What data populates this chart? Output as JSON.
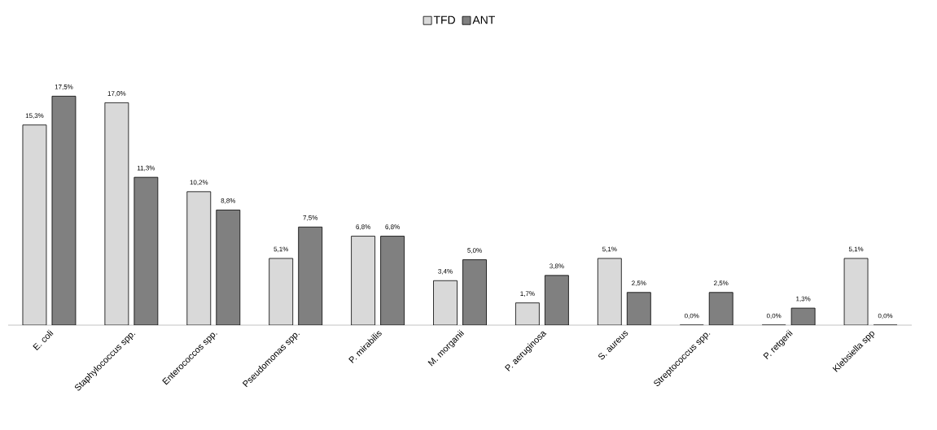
{
  "chart_data": {
    "type": "bar",
    "categories": [
      "E. coli",
      "Staphylococcus spp.",
      "Enterococcos spp.",
      "Pseudomonas spp.",
      "P. mirabilis",
      "M. morganii",
      "P. aeruginosa",
      "S. aureus",
      "Streptococcus spp.",
      "P. retgerii",
      "Klebsiella spp"
    ],
    "series": [
      {
        "name": "TFD",
        "color": "#d9d9d9",
        "values": [
          15.3,
          17.0,
          10.2,
          5.1,
          6.8,
          3.4,
          1.7,
          5.1,
          0.0,
          0.0,
          5.1
        ],
        "value_labels": [
          "15,3%",
          "17,0%",
          "10,2%",
          "5,1%",
          "6,8%",
          "3,4%",
          "1,7%",
          "5,1%",
          "0,0%",
          "0,0%",
          "5,1%"
        ]
      },
      {
        "name": "ANT",
        "color": "#808080",
        "values": [
          17.5,
          11.3,
          8.8,
          7.5,
          6.8,
          5.0,
          3.8,
          2.5,
          2.5,
          1.3,
          0.0
        ],
        "value_labels": [
          "17,5%",
          "11,3%",
          "8,8%",
          "7,5%",
          "6,8%",
          "5,0%",
          "3,8%",
          "2,5%",
          "2,5%",
          "1,3%",
          "0,0%"
        ]
      }
    ],
    "legend": "top"
  }
}
